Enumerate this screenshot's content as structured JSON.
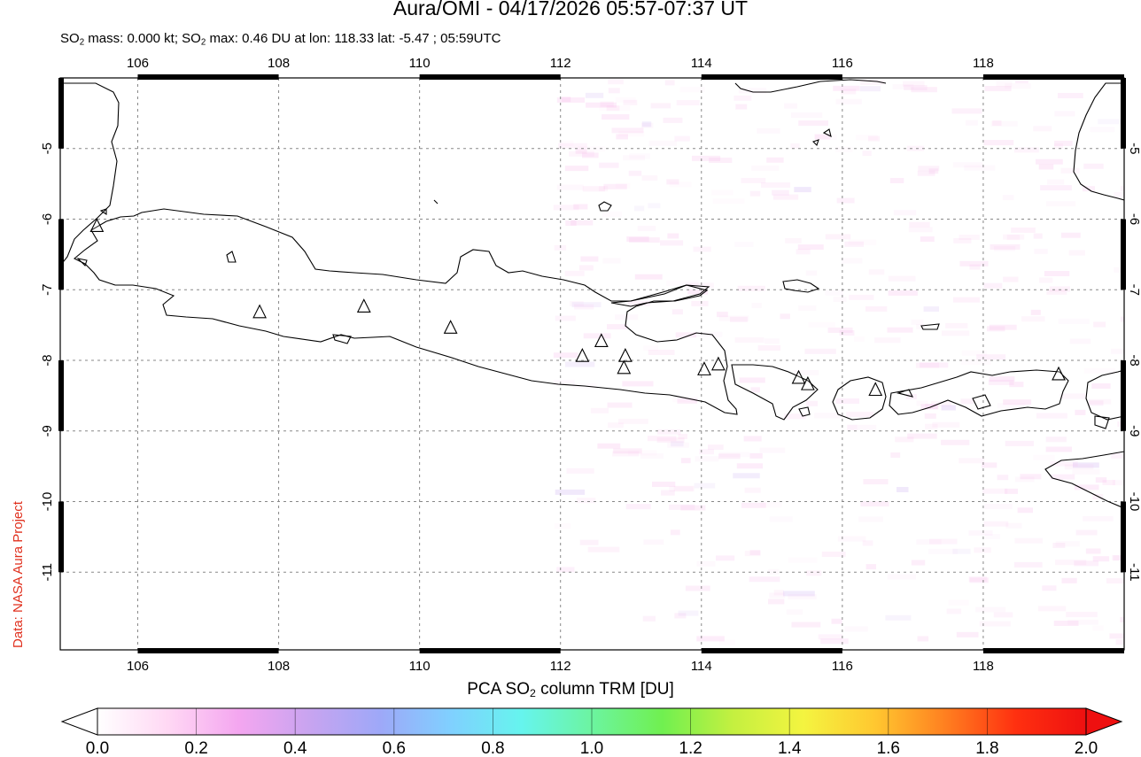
{
  "title": "Aura/OMI - 04/17/2026 05:57-07:37 UT",
  "subtitle": {
    "part1": "SO",
    "part1_sub": "2",
    "part2": " mass: 0.000 kt; SO",
    "part2_sub": "2",
    "part3": " max: 0.46 DU at lon: 118.33 lat: -5.47 ; 05:59UTC"
  },
  "credit": "Data: NASA Aura Project",
  "colorbar": {
    "label_pre": "PCA SO",
    "label_sub": "2",
    "label_post": " column TRM [DU]",
    "ticks": [
      "0.0",
      "0.2",
      "0.4",
      "0.6",
      "0.8",
      "1.0",
      "1.2",
      "1.4",
      "1.6",
      "1.8",
      "2.0"
    ],
    "range": [
      0.0,
      2.0
    ],
    "colors": [
      "#ffffff",
      "#ffd8f4",
      "#f4a6f0",
      "#c8a4f0",
      "#9ea8f8",
      "#80d0ff",
      "#66f4ee",
      "#6cf4a0",
      "#70f050",
      "#c4f040",
      "#f4f440",
      "#ffc830",
      "#ff8020",
      "#ff3010",
      "#ee1010"
    ]
  },
  "map": {
    "lon_range": [
      104.9,
      120.0
    ],
    "lat_range": [
      -12.1,
      -4.0
    ],
    "x_ticks": [
      "106",
      "108",
      "110",
      "112",
      "114",
      "116",
      "118"
    ],
    "x_tick_values": [
      106,
      108,
      110,
      112,
      114,
      116,
      118
    ],
    "y_ticks": [
      "-5",
      "-6",
      "-7",
      "-8",
      "-9",
      "-10",
      "-11"
    ],
    "y_tick_values": [
      -5,
      -6,
      -7,
      -8,
      -9,
      -10,
      -11
    ],
    "grid": true,
    "volcanoes": [
      {
        "lon": 105.42,
        "lat": -6.1
      },
      {
        "lon": 107.73,
        "lat": -7.32
      },
      {
        "lon": 109.21,
        "lat": -7.24
      },
      {
        "lon": 110.44,
        "lat": -7.54
      },
      {
        "lon": 112.31,
        "lat": -7.94
      },
      {
        "lon": 112.58,
        "lat": -7.73
      },
      {
        "lon": 112.92,
        "lat": -7.94
      },
      {
        "lon": 112.9,
        "lat": -8.11
      },
      {
        "lon": 114.04,
        "lat": -8.13
      },
      {
        "lon": 114.24,
        "lat": -8.06
      },
      {
        "lon": 115.38,
        "lat": -8.25
      },
      {
        "lon": 115.51,
        "lat": -8.34
      },
      {
        "lon": 116.47,
        "lat": -8.42
      },
      {
        "lon": 119.07,
        "lat": -8.2
      }
    ]
  }
}
